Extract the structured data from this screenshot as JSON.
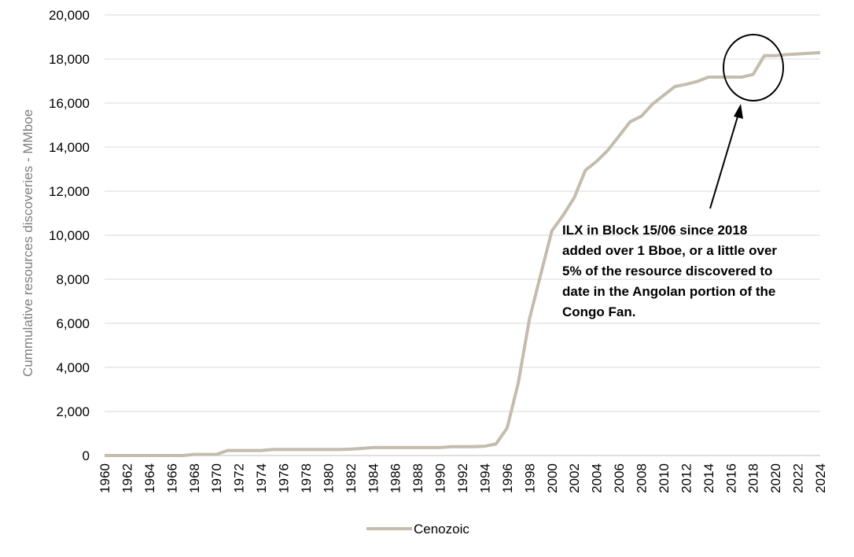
{
  "chart_data": {
    "type": "line",
    "title": "",
    "xlabel": "",
    "ylabel": "Cummulative resources discoveries - MMboe",
    "ylim": [
      0,
      20000
    ],
    "yticks": [
      "0",
      "2,000",
      "4,000",
      "6,000",
      "8,000",
      "10,000",
      "12,000",
      "14,000",
      "16,000",
      "18,000",
      "20,000"
    ],
    "grid": "horizontal",
    "legend_position": "bottom",
    "series_color": "#c4bcad",
    "x": [
      1960,
      1961,
      1962,
      1963,
      1964,
      1965,
      1966,
      1967,
      1968,
      1969,
      1970,
      1971,
      1972,
      1973,
      1974,
      1975,
      1976,
      1977,
      1978,
      1979,
      1980,
      1981,
      1982,
      1983,
      1984,
      1985,
      1986,
      1987,
      1988,
      1989,
      1990,
      1991,
      1992,
      1993,
      1994,
      1995,
      1996,
      1997,
      1998,
      1999,
      2000,
      2001,
      2002,
      2003,
      2004,
      2005,
      2006,
      2007,
      2008,
      2009,
      2010,
      2011,
      2012,
      2013,
      2014,
      2015,
      2016,
      2017,
      2018,
      2019,
      2020,
      2021,
      2022,
      2023,
      2024
    ],
    "series": [
      {
        "name": "Cenozoic",
        "values": [
          0,
          0,
          0,
          0,
          0,
          0,
          0,
          0,
          50,
          50,
          50,
          230,
          230,
          230,
          230,
          270,
          270,
          270,
          270,
          270,
          270,
          270,
          290,
          320,
          360,
          360,
          360,
          360,
          360,
          360,
          360,
          400,
          400,
          400,
          420,
          520,
          1250,
          3300,
          6200,
          8200,
          10200,
          10900,
          11700,
          12950,
          13350,
          13850,
          14500,
          15150,
          15400,
          15950,
          16350,
          16750,
          16850,
          16980,
          17180,
          17180,
          17180,
          17180,
          17300,
          18150,
          18150,
          18200,
          18230,
          18260,
          18290
        ]
      }
    ],
    "annotation": {
      "lines": [
        "ILX in Block 15/06 since 2018",
        "added over 1 Bboe, or a little over",
        "5% of the resource discovered to",
        "date in the Angolan portion of the",
        "Congo Fan."
      ]
    }
  }
}
